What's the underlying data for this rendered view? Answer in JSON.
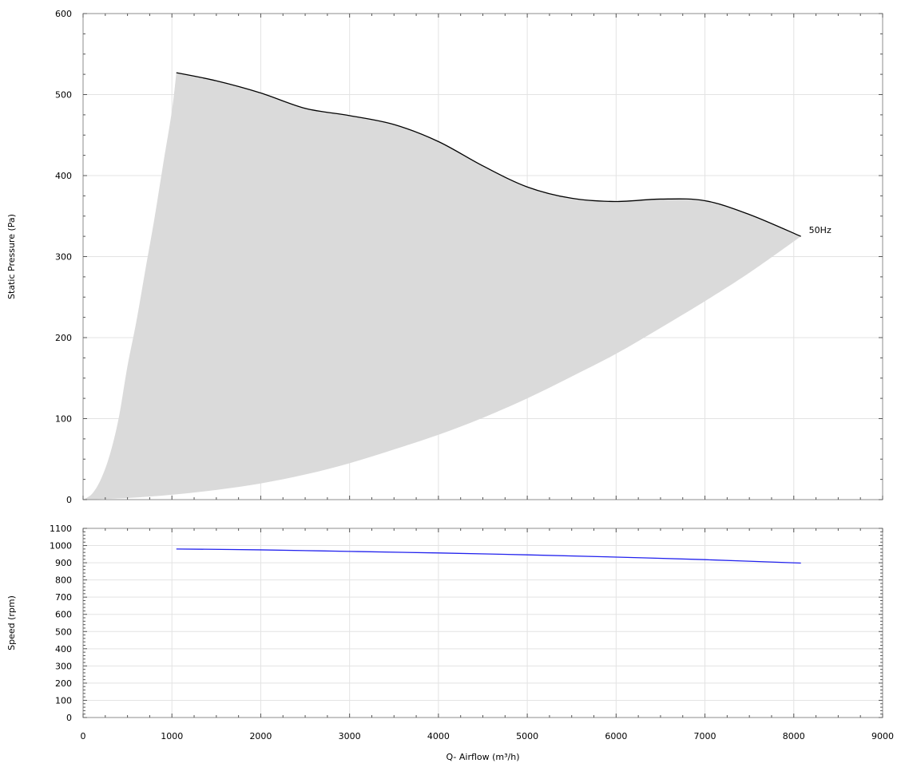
{
  "chart_data": [
    {
      "type": "area",
      "title": "",
      "xlabel": "",
      "ylabel": "Static Pressure (Pa)",
      "xlim": [
        0,
        9000
      ],
      "ylim": [
        0,
        600
      ],
      "x_ticks": [
        0,
        1000,
        2000,
        3000,
        4000,
        5000,
        6000,
        7000,
        8000,
        9000
      ],
      "y_ticks": [
        0,
        100,
        200,
        300,
        400,
        500,
        600
      ],
      "grid": true,
      "colors": {
        "region_fill": "#dadada",
        "curve": "#000000",
        "grid": "#e3e3e3"
      },
      "series": [
        {
          "name": "50Hz",
          "x": [
            1050,
            1500,
            2000,
            2500,
            3000,
            3500,
            4000,
            4500,
            5000,
            5500,
            6000,
            6500,
            7000,
            7500,
            8080
          ],
          "y": [
            527,
            517,
            502,
            483,
            474,
            463,
            442,
            412,
            386,
            372,
            368,
            371,
            369,
            352,
            325
          ]
        }
      ],
      "operating_region": {
        "left_boundary": {
          "x": [
            0,
            100,
            200,
            300,
            400,
            500,
            600,
            700,
            800,
            900,
            1000,
            1050
          ],
          "y": [
            0,
            7,
            25,
            55,
            100,
            165,
            220,
            283,
            345,
            413,
            480,
            527
          ]
        },
        "bottom_boundary": {
          "x": [
            0,
            500,
            1000,
            1500,
            2000,
            2500,
            3000,
            3500,
            4000,
            4500,
            5000,
            5500,
            6000,
            6500,
            7000,
            7500,
            8080
          ],
          "y": [
            0,
            2,
            6,
            12,
            20,
            31,
            45,
            62,
            80,
            101,
            125,
            152,
            180,
            212,
            245,
            280,
            325
          ]
        }
      }
    },
    {
      "type": "line",
      "title": "",
      "xlabel": "Q- Airflow (m³/h)",
      "ylabel": "Speed (rpm)",
      "xlim": [
        0,
        9000
      ],
      "ylim": [
        0,
        1100
      ],
      "x_ticks": [
        0,
        1000,
        2000,
        3000,
        4000,
        5000,
        6000,
        7000,
        8000,
        9000
      ],
      "y_ticks": [
        0,
        100,
        200,
        300,
        400,
        500,
        600,
        700,
        800,
        900,
        1000,
        1100
      ],
      "grid": true,
      "colors": {
        "line": "#2222ee",
        "grid": "#e3e3e3"
      },
      "series": [
        {
          "x": [
            1050,
            2000,
            3000,
            4000,
            5000,
            6000,
            7000,
            8080
          ],
          "y": [
            980,
            975,
            966,
            957,
            946,
            933,
            918,
            898
          ]
        }
      ]
    }
  ]
}
